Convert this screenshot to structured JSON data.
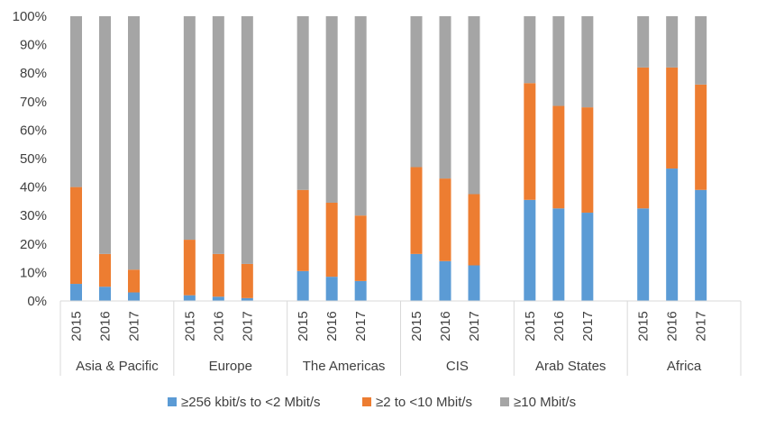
{
  "chart_data": {
    "type": "bar",
    "stacked": true,
    "orientation": "vertical",
    "groups": [
      "Asia & Pacific",
      "Europe",
      "The Americas",
      "CIS",
      "Arab States",
      "Africa"
    ],
    "years": [
      "2015",
      "2016",
      "2017"
    ],
    "ylim": [
      0,
      100
    ],
    "yticks": [
      "0%",
      "10%",
      "20%",
      "30%",
      "40%",
      "50%",
      "60%",
      "70%",
      "80%",
      "90%",
      "100%"
    ],
    "grid": false,
    "legend_position": "bottom",
    "series": [
      {
        "name": "≥256 kbit/s to <2 Mbit/s",
        "color": "#5B9BD5",
        "values": [
          6,
          5,
          3,
          2,
          1.5,
          1,
          10.5,
          8.5,
          7,
          16.5,
          14,
          12.5,
          35.5,
          32.5,
          31,
          32.5,
          46.5,
          39
        ]
      },
      {
        "name": "≥2 to <10 Mbit/s",
        "color": "#ED7D31",
        "values": [
          34,
          11.5,
          8,
          19.5,
          15,
          12,
          28.5,
          26,
          23,
          30.5,
          29,
          25,
          41,
          36,
          37,
          49.5,
          35.5,
          37
        ]
      },
      {
        "name": "≥10 Mbit/s",
        "color": "#A5A5A5",
        "values": [
          60,
          83.5,
          89,
          78.5,
          83.5,
          87,
          61,
          65.5,
          70,
          53,
          57,
          62.5,
          23.5,
          31.5,
          32,
          18,
          18,
          24
        ]
      }
    ]
  }
}
